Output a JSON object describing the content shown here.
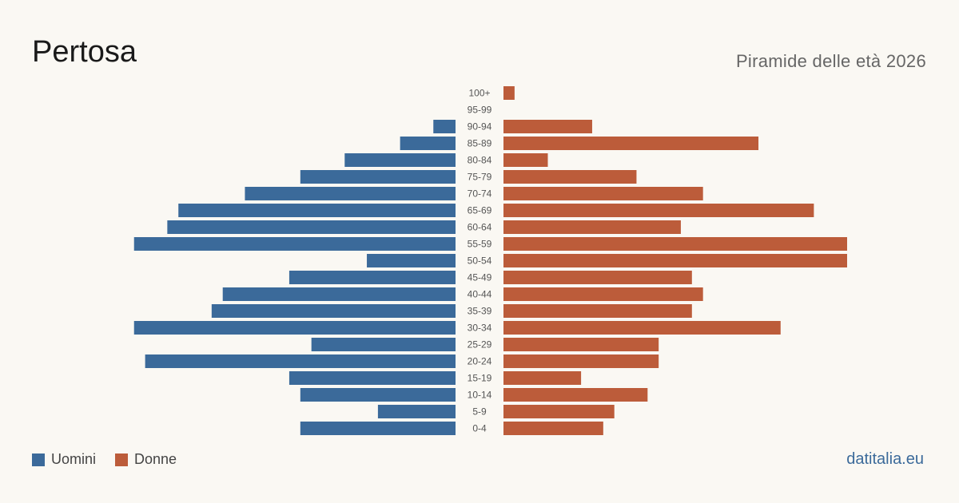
{
  "header": {
    "title": "Pertosa",
    "subtitle": "Piramide delle età 2026"
  },
  "legend": [
    {
      "label": "Uomini",
      "color": "#3b6a9a"
    },
    {
      "label": "Donne",
      "color": "#bc5c3a"
    }
  ],
  "brand": "datitalia.eu",
  "chart_data": {
    "type": "bar",
    "orientation": "horizontal-pyramid",
    "categories": [
      "100+",
      "95-99",
      "90-94",
      "85-89",
      "80-84",
      "75-79",
      "70-74",
      "65-69",
      "60-64",
      "55-59",
      "50-54",
      "45-49",
      "40-44",
      "35-39",
      "30-34",
      "25-29",
      "20-24",
      "15-19",
      "10-14",
      "5-9",
      "0-4"
    ],
    "series": [
      {
        "name": "Uomini",
        "color": "#3b6a9a",
        "values": [
          0,
          0,
          2,
          5,
          10,
          14,
          19,
          25,
          26,
          29,
          8,
          15,
          21,
          22,
          29,
          13,
          28,
          15,
          14,
          7,
          14
        ]
      },
      {
        "name": "Donne",
        "color": "#bc5c3a",
        "values": [
          1,
          0,
          8,
          23,
          4,
          12,
          18,
          28,
          16,
          31,
          31,
          17,
          18,
          17,
          25,
          14,
          14,
          7,
          13,
          10,
          9
        ]
      }
    ],
    "legend_position": "bottom-left",
    "grid": false
  }
}
